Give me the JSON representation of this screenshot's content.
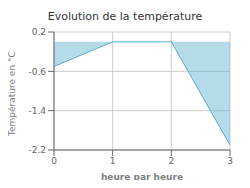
{
  "chart_data": {
    "type": "area",
    "title": "Evolution de la température",
    "xlabel": "heure par heure",
    "ylabel": "Température en °C",
    "x": [
      0,
      1,
      2,
      3
    ],
    "values": [
      -0.5,
      0.0,
      0.0,
      -2.1
    ],
    "color": "#5aaccc",
    "xlim": [
      0,
      3
    ],
    "xticks": [
      0,
      1,
      2,
      3
    ],
    "ylim": [
      -2.2,
      0.2
    ],
    "yticks": [
      0.2,
      -0.6,
      -1.4,
      -2.2
    ],
    "grid": true
  }
}
